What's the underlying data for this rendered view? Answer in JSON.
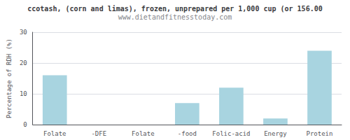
{
  "chart_data": {
    "type": "bar",
    "title": "ccotash, (corn and limas), frozen, unprepared per 1,000 cup (or 156.00",
    "subtitle": "www.dietandfitnesstoday.com",
    "categories": [
      "Folate",
      "-DFE",
      "Folate",
      "-food",
      "Folic-acid",
      "Energy",
      "Protein"
    ],
    "values": [
      16.0,
      0.0,
      0.0,
      7.0,
      12.0,
      2.0,
      24.0
    ],
    "color": "#a8d4e0",
    "ylabel": "Percentage of RDH (%)",
    "ylim": [
      0,
      30
    ],
    "yticks": [
      0,
      10,
      20,
      30
    ],
    "grid": true
  }
}
